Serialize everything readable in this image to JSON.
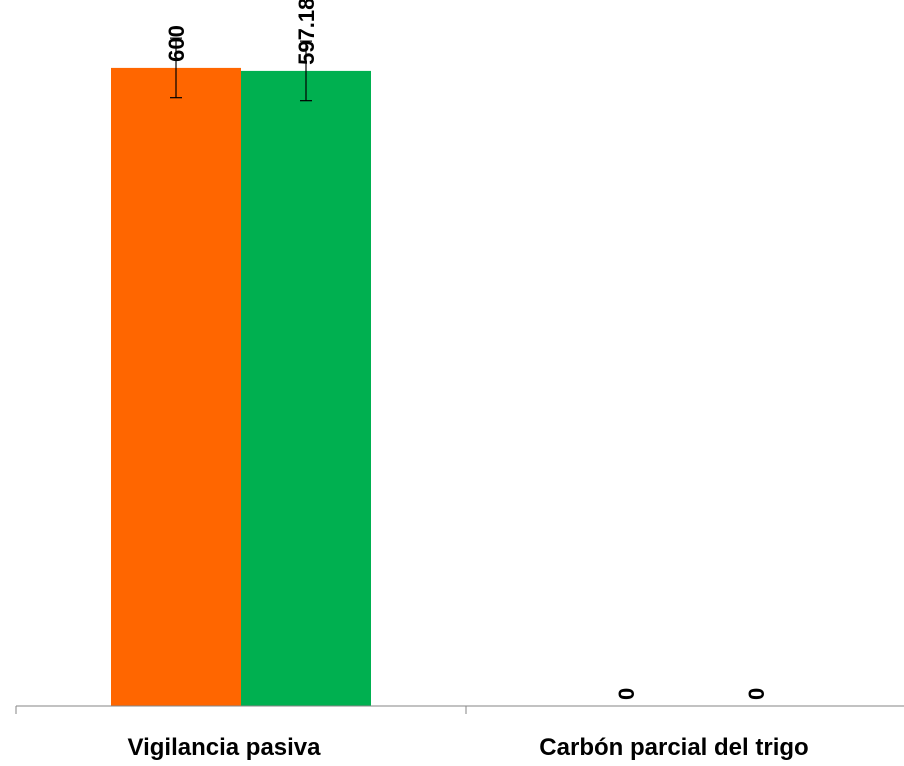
{
  "chart_data": {
    "type": "bar",
    "categories": [
      "Vigilancia pasiva",
      "Carbón parcial del trigo"
    ],
    "series": [
      {
        "values": [
          600,
          0
        ],
        "value_labels": [
          "600",
          "0"
        ],
        "color": "#ff6600"
      },
      {
        "values": [
          597.18,
          0
        ],
        "value_labels": [
          "597.18",
          "0"
        ],
        "color": "#00b050"
      }
    ],
    "error_bars": [
      [
        28,
        0
      ],
      [
        28,
        0
      ]
    ],
    "ylim": [
      0,
      630
    ],
    "title": "",
    "xlabel": "",
    "ylabel": "",
    "grid": false,
    "legend": "none",
    "value_label_rotation": "vertical"
  }
}
